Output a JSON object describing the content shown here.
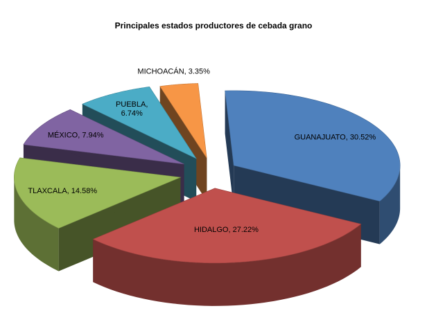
{
  "chart_data": {
    "type": "pie",
    "style": "3d-exploded",
    "title": "Principales estados productores de cebada grano",
    "categories": [
      "GUANAJUATO",
      "HIDALGO",
      "TLAXCALA",
      "MÉXICO",
      "PUEBLA",
      "MICHOACÁN"
    ],
    "values": [
      30.52,
      27.22,
      14.58,
      7.94,
      6.74,
      3.35
    ],
    "unit": "%",
    "data_labels": [
      [
        "GUANAJUATO, 30.52%"
      ],
      [
        "HIDALGO, 27.22%"
      ],
      [
        "TLAXCALA, 14.58%"
      ],
      [
        "MÉXICO, 7.94%"
      ],
      [
        "PUEBLA,",
        "6.74%"
      ],
      [
        "MICHOACÁN, 3.35%"
      ]
    ],
    "colors": [
      "#4f81bd",
      "#c0504d",
      "#9bbb59",
      "#8064a2",
      "#4bacc6",
      "#f79646"
    ],
    "legend": "none"
  }
}
